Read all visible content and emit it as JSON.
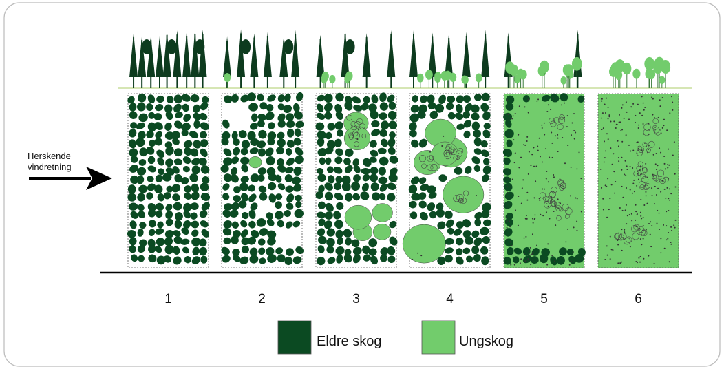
{
  "wind_label": {
    "lines": [
      "Herskende",
      "vindretning"
    ]
  },
  "stages": [
    "1",
    "2",
    "3",
    "4",
    "5",
    "6"
  ],
  "legend": [
    {
      "label": "Eldre skog",
      "color": "#0b4a22"
    },
    {
      "label": "Ungskog",
      "color": "#72cc6c"
    }
  ]
}
